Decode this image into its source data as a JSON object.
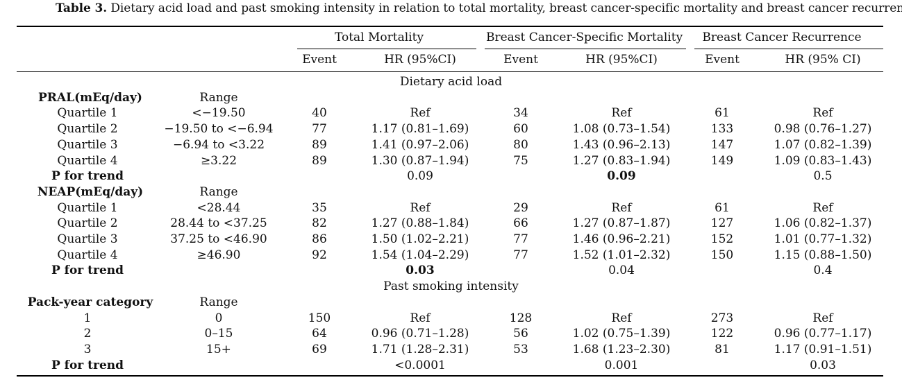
{
  "caption": {
    "prefix": "Table 3.",
    "text": " Dietary acid load and past smoking intensity in relation to total mortality, breast cancer-specific mortality and breast cancer recurrence."
  },
  "headers": {
    "groups": [
      "Total Mortality",
      "Breast Cancer-Specific Mortality",
      "Breast Cancer Recurrence"
    ],
    "sub": [
      "Event",
      "HR (95%CI)",
      "Event",
      "HR (95%CI)",
      "Event",
      "HR (95% CI)"
    ]
  },
  "sections": [
    {
      "title": "Dietary acid load",
      "blocks": [
        {
          "label": "PRAL(mEq/day)",
          "range_label": "Range",
          "rows": [
            {
              "label": "Quartile 1",
              "range": "<−19.50",
              "cells": [
                "40",
                "Ref",
                "34",
                "Ref",
                "61",
                "Ref"
              ]
            },
            {
              "label": "Quartile 2",
              "range": "−19.50 to <−6.94",
              "cells": [
                "77",
                "1.17 (0.81–1.69)",
                "60",
                "1.08 (0.73–1.54)",
                "133",
                "0.98 (0.76–1.27)"
              ]
            },
            {
              "label": "Quartile 3",
              "range": "−6.94 to <3.22",
              "cells": [
                "89",
                "1.41 (0.97–2.06)",
                "80",
                "1.43 (0.96–2.13)",
                "147",
                "1.07 (0.82–1.39)"
              ]
            },
            {
              "label": "Quartile 4",
              "range": "≥3.22",
              "cells": [
                "89",
                "1.30 (0.87–1.94)",
                "75",
                "1.27 (0.83–1.94)",
                "149",
                "1.09 (0.83–1.43)"
              ]
            }
          ],
          "trend": {
            "label": "P for trend",
            "values": [
              "0.09",
              "0.09",
              "0.5"
            ],
            "bold": [
              false,
              true,
              false
            ]
          }
        },
        {
          "label": "NEAP(mEq/day)",
          "range_label": "Range",
          "rows": [
            {
              "label": "Quartile 1",
              "range": "<28.44",
              "cells": [
                "35",
                "Ref",
                "29",
                "Ref",
                "61",
                "Ref"
              ]
            },
            {
              "label": "Quartile 2",
              "range": "28.44 to <37.25",
              "cells": [
                "82",
                "1.27 (0.88–1.84)",
                "66",
                "1.27 (0.87–1.87)",
                "127",
                "1.06 (0.82–1.37)"
              ]
            },
            {
              "label": "Quartile 3",
              "range": "37.25 to <46.90",
              "cells": [
                "86",
                "1.50 (1.02–2.21)",
                "77",
                "1.46 (0.96–2.21)",
                "152",
                "1.01 (0.77–1.32)"
              ]
            },
            {
              "label": "Quartile 4",
              "range": "≥46.90",
              "cells": [
                "92",
                "1.54 (1.04–2.29)",
                "77",
                "1.52 (1.01–2.32)",
                "150",
                "1.15 (0.88–1.50)"
              ]
            }
          ],
          "trend": {
            "label": "P for trend",
            "values": [
              "0.03",
              "0.04",
              "0.4"
            ],
            "bold": [
              true,
              false,
              false
            ]
          }
        }
      ]
    },
    {
      "title": "Past smoking intensity",
      "blocks": [
        {
          "label": "Pack-year category",
          "range_label": "Range",
          "rows": [
            {
              "label": "1",
              "range": "0",
              "cells": [
                "150",
                "Ref",
                "128",
                "Ref",
                "273",
                "Ref"
              ]
            },
            {
              "label": "2",
              "range": "0–15",
              "cells": [
                "64",
                "0.96 (0.71–1.28)",
                "56",
                "1.02 (0.75–1.39)",
                "122",
                "0.96 (0.77–1.17)"
              ]
            },
            {
              "label": "3",
              "range": "15+",
              "cells": [
                "69",
                "1.71 (1.28–2.31)",
                "53",
                "1.68 (1.23–2.30)",
                "81",
                "1.17 (0.91–1.51)"
              ]
            }
          ],
          "trend": {
            "label": "P for trend",
            "values": [
              "<0.0001",
              "0.001",
              "0.03"
            ],
            "bold": [
              false,
              false,
              false
            ]
          }
        }
      ]
    }
  ]
}
